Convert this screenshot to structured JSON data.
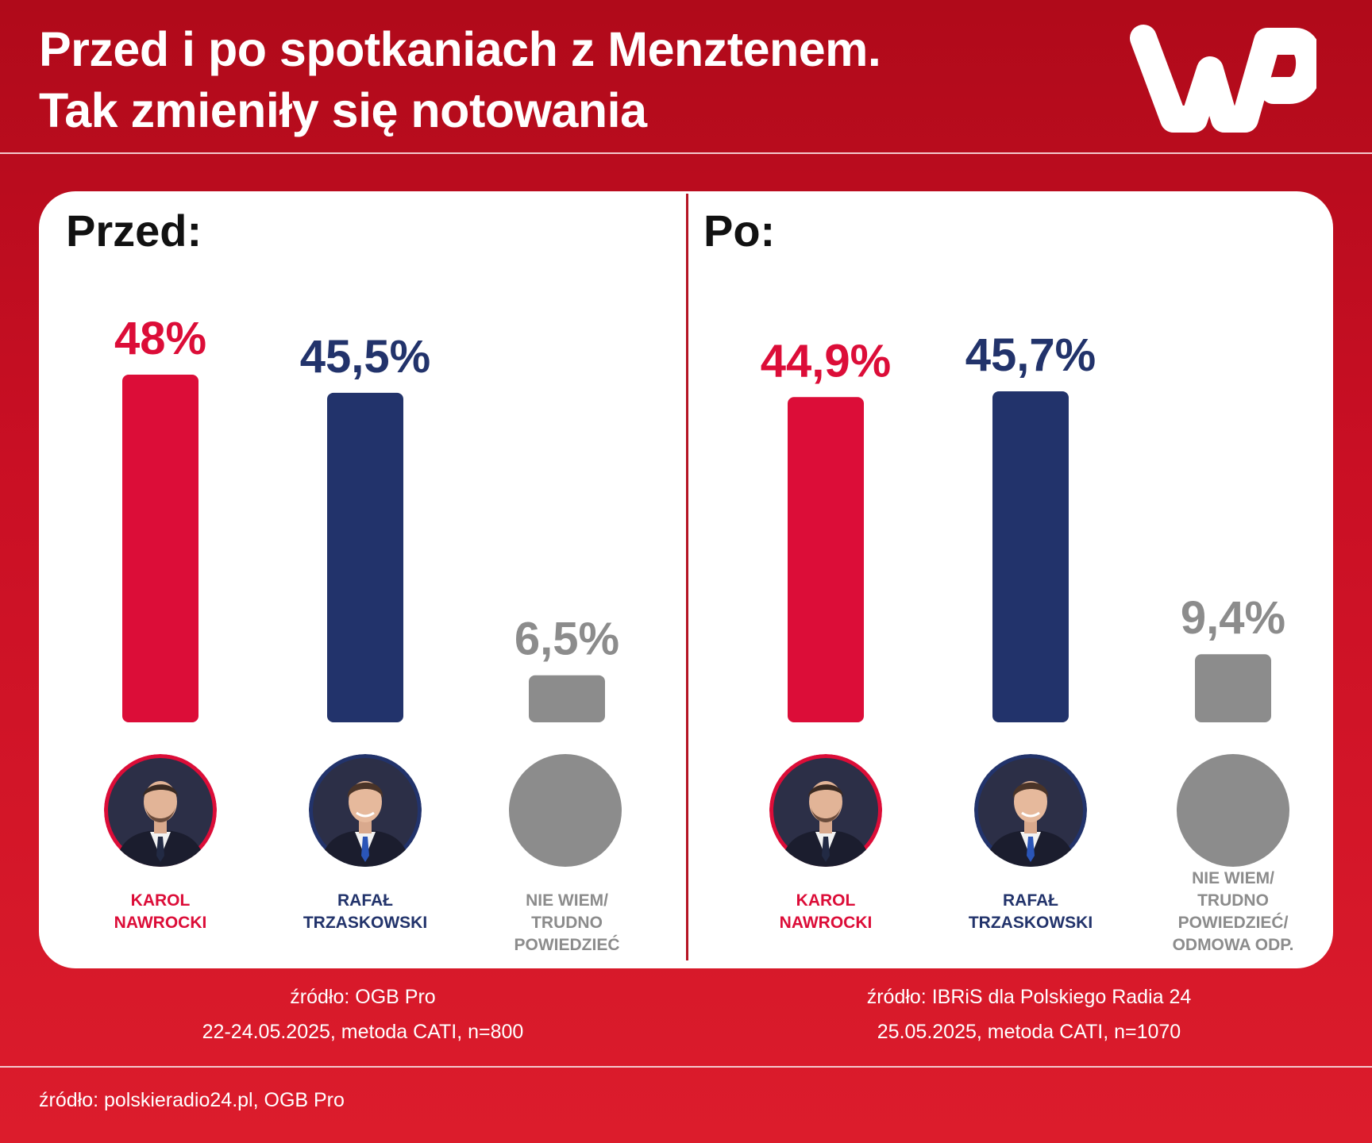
{
  "title_lines": [
    "Przed i po spotkaniach z Menztenem.",
    "Tak zmieniły się notowania"
  ],
  "logo": {
    "text": "WP",
    "color": "#ffffff"
  },
  "colors": {
    "nawrocki": "#dc0d38",
    "trzaskowski": "#22336b",
    "undecided": "#8c8c8c"
  },
  "chart_data": [
    {
      "type": "bar",
      "title": "Przed:",
      "categories": [
        "KAROL\nNAWROCKI",
        "RAFAŁ\nTRZASKOWSKI",
        "NIE WIEM/\nTRUDNO\nPOWIEDZIEĆ"
      ],
      "values": [
        48,
        45.5,
        6.5
      ],
      "labels": [
        "48%",
        "45,5%",
        "6,5%"
      ],
      "colors": [
        "#dc0d38",
        "#22336b",
        "#8c8c8c"
      ],
      "ylim": [
        0,
        50
      ],
      "source": [
        "źródło: OGB Pro",
        "22-24.05.2025, metoda CATI, n=800"
      ]
    },
    {
      "type": "bar",
      "title": "Po:",
      "categories": [
        "KAROL\nNAWROCKI",
        "RAFAŁ\nTRZASKOWSKI",
        "NIE WIEM/\nTRUDNO\nPOWIEDZIEĆ/\nODMOWA ODP."
      ],
      "values": [
        44.9,
        45.7,
        9.4
      ],
      "labels": [
        "44,9%",
        "45,7%",
        "9,4%"
      ],
      "colors": [
        "#dc0d38",
        "#22336b",
        "#8c8c8c"
      ],
      "ylim": [
        0,
        50
      ],
      "source": [
        "źródło: IBRiS dla Polskiego Radia 24",
        "25.05.2025, metoda CATI, n=1070"
      ]
    }
  ],
  "footer": "źródło: polskieradio24.pl, OGB Pro"
}
